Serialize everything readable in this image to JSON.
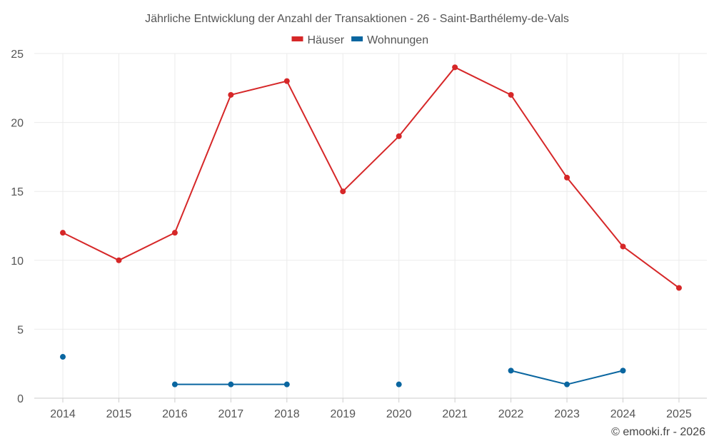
{
  "chart_data": {
    "type": "line",
    "title": "Jährliche Entwicklung der Anzahl der Transaktionen - 26 - Saint-Barthélemy-de-Vals",
    "categories": [
      "2014",
      "2015",
      "2016",
      "2017",
      "2018",
      "2019",
      "2020",
      "2021",
      "2022",
      "2023",
      "2024",
      "2025"
    ],
    "ylim": [
      0,
      25
    ],
    "yticks": [
      0,
      5,
      10,
      15,
      20,
      25
    ],
    "legend_position": "top-center",
    "grid": true,
    "series": [
      {
        "name": "Häuser",
        "color": "#d62728",
        "values": [
          12,
          10,
          12,
          22,
          23,
          15,
          19,
          24,
          22,
          16,
          11,
          8
        ]
      },
      {
        "name": "Wohnungen",
        "color": "#0a66a0",
        "values": [
          3,
          null,
          1,
          1,
          1,
          null,
          1,
          null,
          2,
          1,
          2,
          null
        ]
      }
    ]
  },
  "footer": {
    "copyright": "© emooki.fr - 2026"
  }
}
